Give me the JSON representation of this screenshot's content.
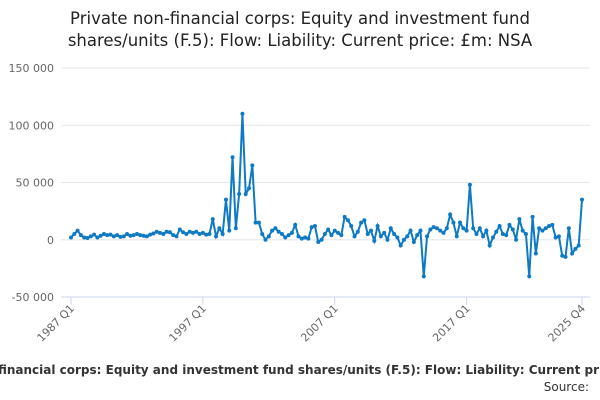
{
  "chart_data": {
    "type": "line",
    "title": [
      "Private non-financial corps: Equity and investment fund",
      "shares/units (F.5): Flow: Liability: Current price: £m: NSA"
    ],
    "source": "Source:",
    "categories": [
      "1987 Q1",
      null,
      null,
      null,
      null,
      null,
      null,
      null,
      null,
      null,
      null,
      null,
      null,
      null,
      null,
      null,
      null,
      null,
      null,
      null,
      null,
      null,
      null,
      null,
      null,
      null,
      null,
      null,
      null,
      null,
      null,
      null,
      null,
      null,
      null,
      null,
      null,
      null,
      null,
      null,
      "1997 Q1",
      null,
      null,
      null,
      null,
      null,
      null,
      null,
      null,
      null,
      null,
      null,
      null,
      null,
      null,
      null,
      null,
      null,
      null,
      null,
      null,
      null,
      null,
      null,
      null,
      null,
      null,
      null,
      null,
      null,
      null,
      null,
      null,
      null,
      null,
      null,
      null,
      null,
      null,
      null,
      "2007 Q1",
      null,
      null,
      null,
      null,
      null,
      null,
      null,
      null,
      null,
      null,
      null,
      null,
      null,
      null,
      null,
      null,
      null,
      null,
      null,
      null,
      null,
      null,
      null,
      null,
      null,
      null,
      null,
      null,
      null,
      null,
      null,
      null,
      null,
      null,
      null,
      null,
      null,
      null,
      null,
      "2017 Q1",
      null,
      null,
      null,
      null,
      null,
      null,
      null,
      null,
      null,
      null,
      null,
      null,
      null,
      null,
      null,
      null,
      null,
      null,
      null,
      null,
      null,
      null,
      null,
      null,
      null,
      null,
      null,
      null,
      null,
      null,
      null,
      null,
      null,
      null,
      "2025 Q4"
    ],
    "series": [
      {
        "name": "Private non-financial corps: Equity and investment fund shares/units (F.5): Flow: Liability: Current price: £m: NSA",
        "color": "#0e7ac4",
        "values": [
          2000,
          5000,
          8000,
          4000,
          2000,
          1500,
          3000,
          4500,
          2000,
          3500,
          5000,
          4000,
          4500,
          3000,
          4000,
          2500,
          3000,
          5000,
          3500,
          4000,
          5000,
          4000,
          3500,
          3000,
          4500,
          5500,
          7000,
          6000,
          5000,
          7000,
          6500,
          4000,
          3000,
          9000,
          6500,
          5000,
          7000,
          6000,
          7000,
          5000,
          6000,
          4500,
          5000,
          18000,
          3000,
          10000,
          5000,
          35000,
          8000,
          72000,
          10000,
          40000,
          110000,
          40000,
          45000,
          65000,
          15000,
          15000,
          5000,
          0,
          3000,
          8000,
          10000,
          7000,
          5000,
          2000,
          4000,
          6000,
          13000,
          3000,
          1000,
          2000,
          1000,
          11000,
          12000,
          -2000,
          0,
          5000,
          9000,
          4000,
          8000,
          6000,
          4000,
          20000,
          17000,
          12000,
          3000,
          7000,
          15000,
          17000,
          5000,
          8000,
          -1000,
          12000,
          3000,
          6000,
          0,
          10000,
          5000,
          2000,
          -5000,
          0,
          3000,
          8000,
          -2000,
          4000,
          8000,
          -32000,
          3000,
          9000,
          11000,
          10000,
          8000,
          6000,
          10000,
          22000,
          15000,
          3000,
          15000,
          10000,
          8000,
          48000,
          10000,
          5000,
          10000,
          3000,
          8000,
          -5000,
          2000,
          7000,
          12000,
          5000,
          4000,
          13000,
          9000,
          0,
          18000,
          8000,
          5000,
          -32000,
          20000,
          -12000,
          10000,
          8000,
          10000,
          12000,
          13000,
          2000,
          3000,
          -14000,
          -15000,
          10000,
          -12000,
          -8000,
          -5000,
          35000
        ]
      }
    ],
    "ylim": [
      -50000,
      150000
    ],
    "yticks": [
      {
        "value": -50000,
        "label": "-50 000"
      },
      0,
      {
        "value": 50000,
        "label": "50 000"
      },
      {
        "value": 100000,
        "label": "100 000"
      },
      {
        "value": 150000,
        "label": "150 000"
      }
    ],
    "grid": true
  }
}
